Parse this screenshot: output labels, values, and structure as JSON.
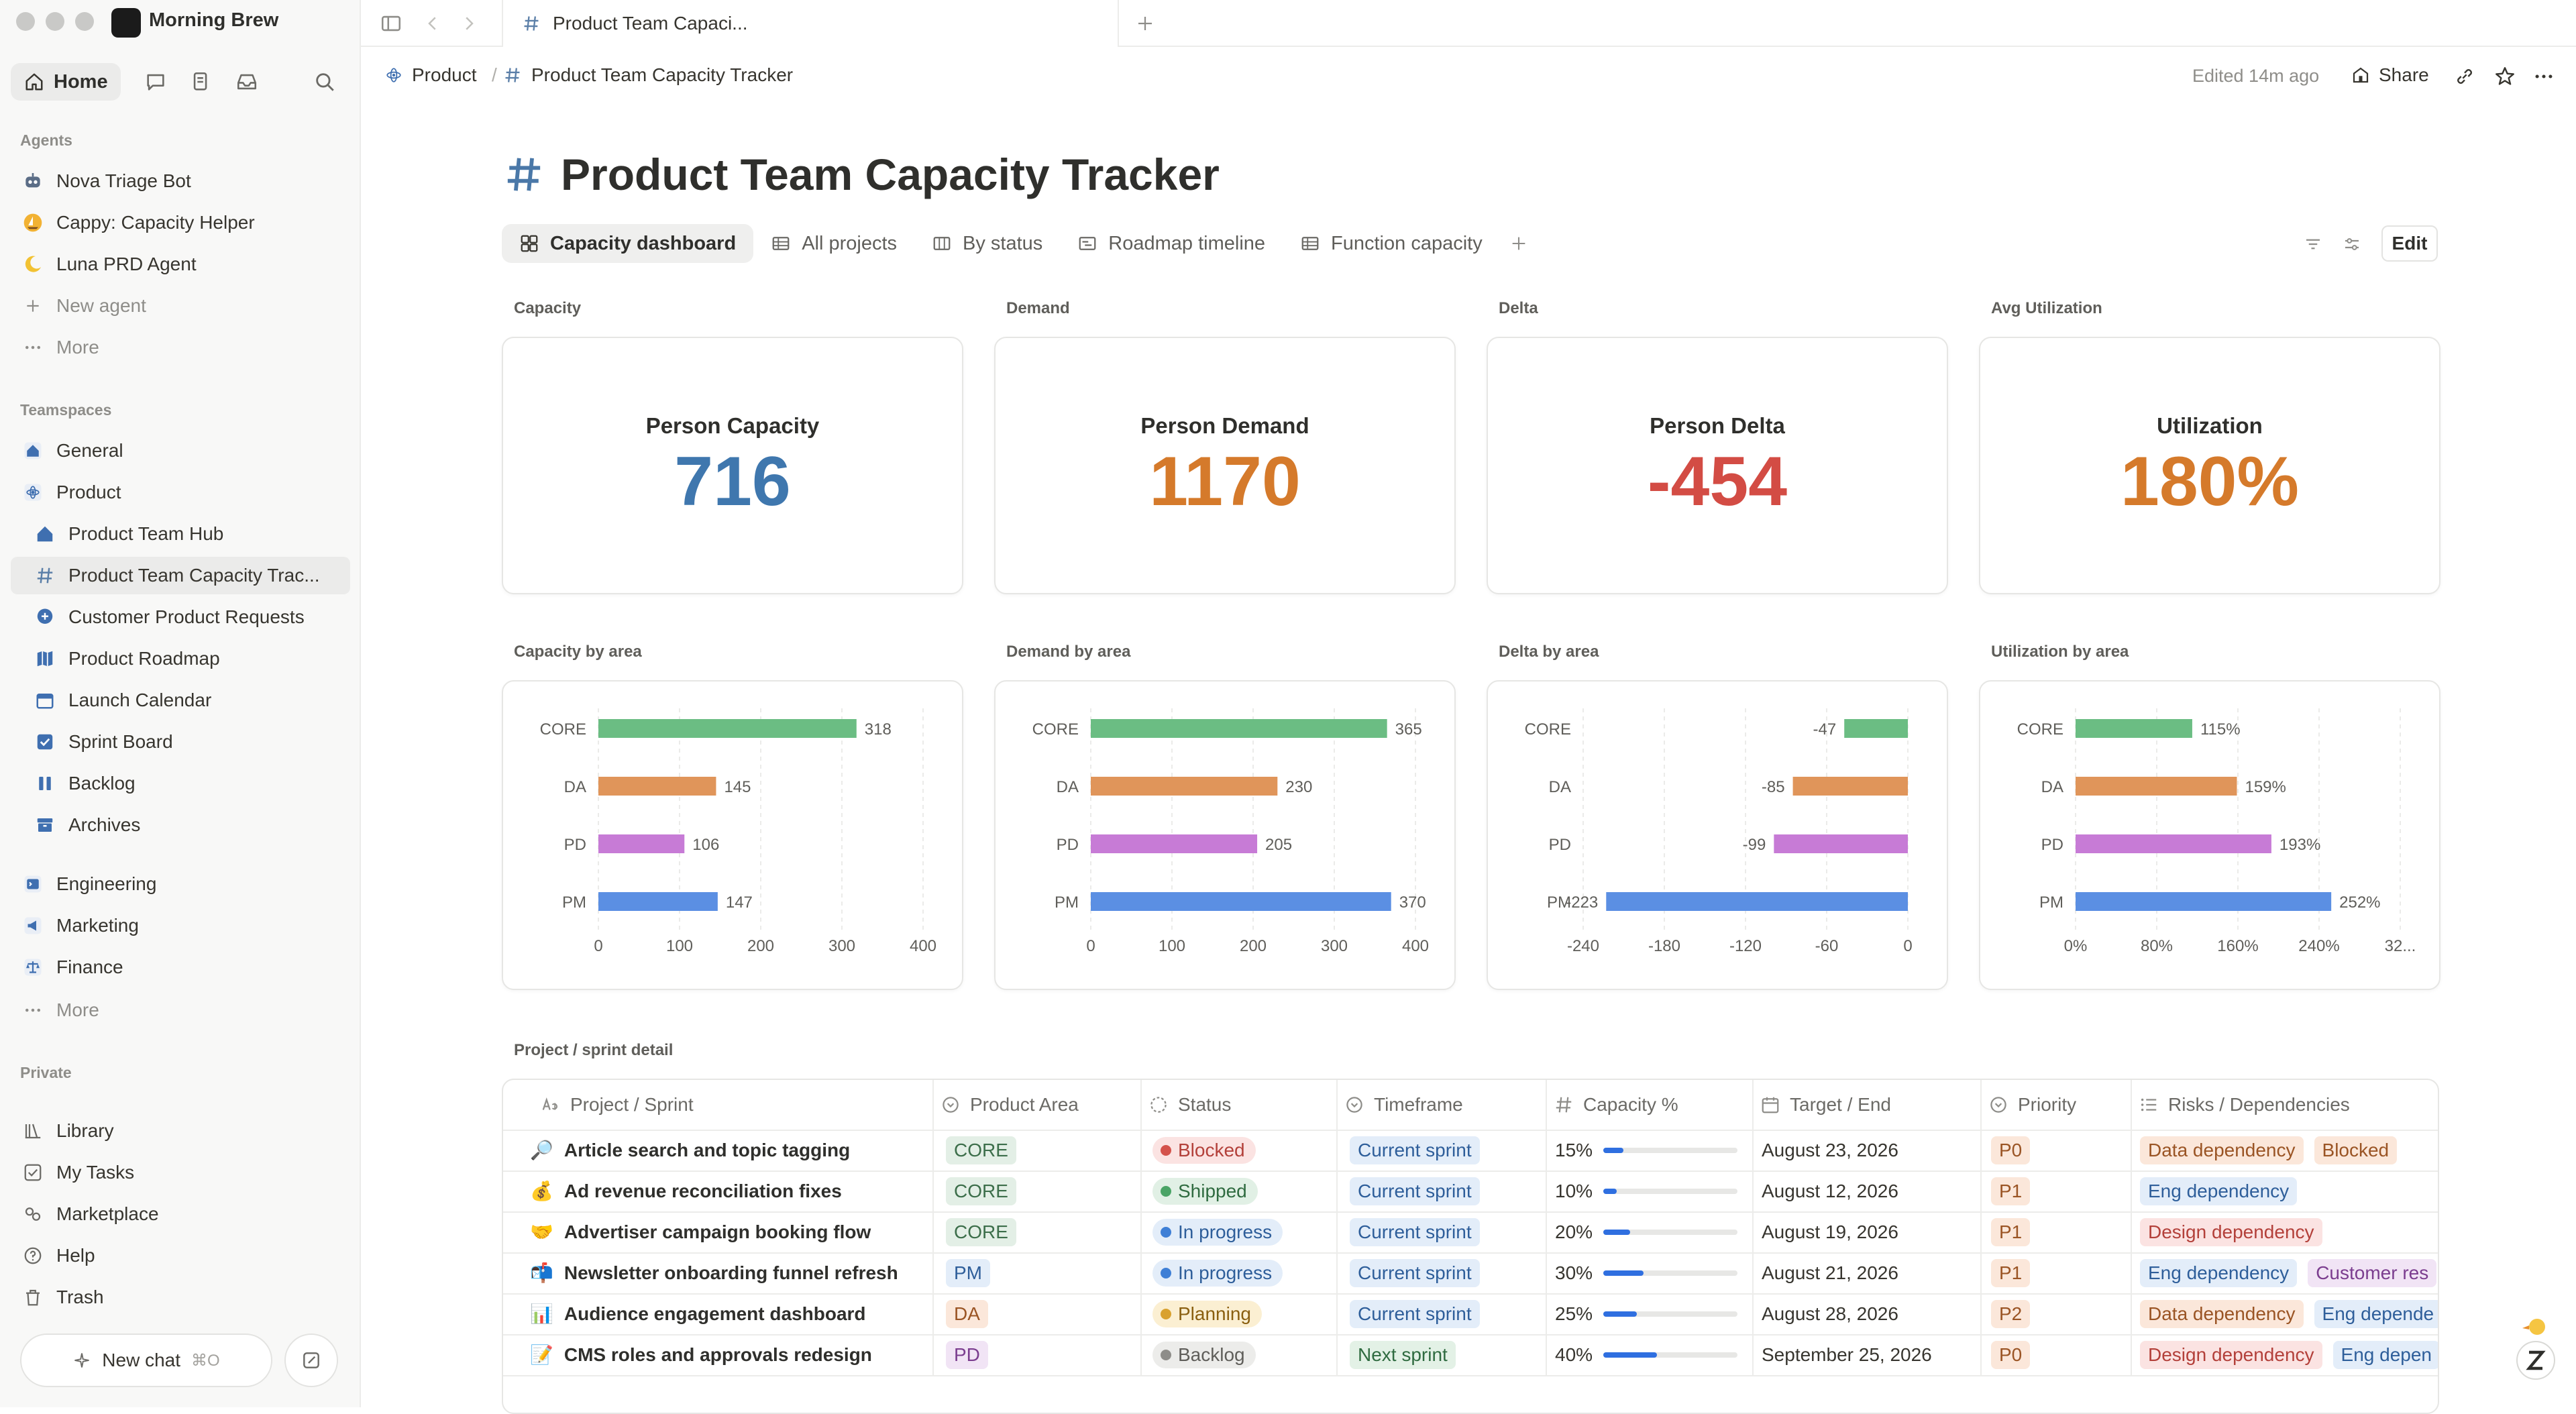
{
  "workspace": {
    "name": "Morning Brew"
  },
  "sidebar": {
    "home": "Home",
    "agents_header": "Agents",
    "agents": [
      {
        "label": "Nova Triage Bot",
        "icon": "robot-icon"
      },
      {
        "label": "Cappy: Capacity Helper",
        "icon": "sailboat-icon"
      },
      {
        "label": "Luna PRD Agent",
        "icon": "moon-icon"
      },
      {
        "label": "New agent",
        "icon": "plus-icon"
      },
      {
        "label": "More",
        "icon": "ellipsis-icon"
      }
    ],
    "teamspaces_header": "Teamspaces",
    "teamspaces": [
      {
        "label": "General"
      },
      {
        "label": "Product"
      },
      {
        "label": "Product Team Hub"
      },
      {
        "label": "Product Team Capacity Trac..."
      },
      {
        "label": "Customer Product Requests"
      },
      {
        "label": "Product Roadmap"
      },
      {
        "label": "Launch Calendar"
      },
      {
        "label": "Sprint Board"
      },
      {
        "label": "Backlog"
      },
      {
        "label": "Archives"
      },
      {
        "label": "Engineering"
      },
      {
        "label": "Marketing"
      },
      {
        "label": "Finance"
      },
      {
        "label": "More"
      }
    ],
    "private_header": "Private",
    "private": [
      {
        "label": "Library"
      },
      {
        "label": "My Tasks"
      },
      {
        "label": "Marketplace"
      },
      {
        "label": "Help"
      },
      {
        "label": "Trash"
      }
    ],
    "new_chat": "New chat",
    "new_chat_shortcut": "⌘O"
  },
  "tab": {
    "title": "Product Team Capaci..."
  },
  "breadcrumb": {
    "parent": "Product",
    "current": "Product Team Capacity Tracker"
  },
  "topbar": {
    "edited": "Edited 14m ago",
    "share": "Share"
  },
  "page": {
    "title": "Product Team Capacity Tracker"
  },
  "views": [
    "Capacity dashboard",
    "All projects",
    "By status",
    "Roadmap timeline",
    "Function capacity"
  ],
  "edit_label": "Edit",
  "kpis": [
    {
      "section": "Capacity",
      "title": "Person Capacity",
      "value": "716",
      "color": "#3f77ae"
    },
    {
      "section": "Demand",
      "title": "Person Demand",
      "value": "1170",
      "color": "#d57a2b"
    },
    {
      "section": "Delta",
      "title": "Person Delta",
      "value": "-454",
      "color": "#d34c44"
    },
    {
      "section": "Avg Utilization",
      "title": "Utilization",
      "value": "180%",
      "color": "#d57a2b"
    }
  ],
  "chart_data": [
    {
      "type": "bar",
      "orientation": "horizontal",
      "title": "Capacity by area",
      "categories": [
        "CORE",
        "DA",
        "PD",
        "PM"
      ],
      "values": [
        318,
        145,
        106,
        147
      ],
      "value_labels": [
        "318",
        "145",
        "106",
        "147"
      ],
      "xlim": [
        0,
        400
      ],
      "ticks": [
        "0",
        "100",
        "200",
        "300",
        "400"
      ]
    },
    {
      "type": "bar",
      "orientation": "horizontal",
      "title": "Demand by area",
      "categories": [
        "CORE",
        "DA",
        "PD",
        "PM"
      ],
      "values": [
        365,
        230,
        205,
        370
      ],
      "value_labels": [
        "365",
        "230",
        "205",
        "370"
      ],
      "xlim": [
        0,
        400
      ],
      "ticks": [
        "0",
        "100",
        "200",
        "300",
        "400"
      ]
    },
    {
      "type": "bar",
      "orientation": "horizontal",
      "title": "Delta by area",
      "categories": [
        "CORE",
        "DA",
        "PD",
        "PM"
      ],
      "values": [
        -47,
        -85,
        -99,
        -223
      ],
      "value_labels": [
        "-47",
        "-85",
        "-99",
        "-223"
      ],
      "xlim": [
        -240,
        0
      ],
      "ticks": [
        "-240",
        "-180",
        "-120",
        "-60",
        "0"
      ]
    },
    {
      "type": "bar",
      "orientation": "horizontal",
      "title": "Utilization by area",
      "categories": [
        "CORE",
        "DA",
        "PD",
        "PM"
      ],
      "values": [
        115,
        159,
        193,
        252
      ],
      "value_labels": [
        "115%",
        "159%",
        "193%",
        "252%"
      ],
      "xlim": [
        0,
        320
      ],
      "ticks": [
        "0%",
        "80%",
        "160%",
        "240%",
        "32..."
      ]
    }
  ],
  "bar_colors": [
    "#6bbd83",
    "#e0955a",
    "#c77bd6",
    "#5b8fe3"
  ],
  "table": {
    "section": "Project / sprint detail",
    "columns": [
      "Project / Sprint",
      "Product Area",
      "Status",
      "Timeframe",
      "Capacity %",
      "Target / End",
      "Priority",
      "Risks / Dependencies"
    ],
    "rows": [
      {
        "icon": "🔎",
        "name": "Article search and topic tagging",
        "area": "CORE",
        "status": "Blocked",
        "timeframe": "Current sprint",
        "capacity": "15%",
        "capacity_frac": 0.15,
        "target": "August 23, 2026",
        "priority": "P0",
        "risks": [
          "Data dependency",
          "Blocked"
        ]
      },
      {
        "icon": "💰",
        "name": "Ad revenue reconciliation fixes",
        "area": "CORE",
        "status": "Shipped",
        "timeframe": "Current sprint",
        "capacity": "10%",
        "capacity_frac": 0.1,
        "target": "August 12, 2026",
        "priority": "P1",
        "risks": [
          "Eng dependency"
        ]
      },
      {
        "icon": "🤝",
        "name": "Advertiser campaign booking flow",
        "area": "CORE",
        "status": "In progress",
        "timeframe": "Current sprint",
        "capacity": "20%",
        "capacity_frac": 0.2,
        "target": "August 19, 2026",
        "priority": "P1",
        "risks": [
          "Design dependency"
        ]
      },
      {
        "icon": "📬",
        "name": "Newsletter onboarding funnel refresh",
        "area": "PM",
        "status": "In progress",
        "timeframe": "Current sprint",
        "capacity": "30%",
        "capacity_frac": 0.3,
        "target": "August 21, 2026",
        "priority": "P1",
        "risks": [
          "Eng dependency",
          "Customer res"
        ]
      },
      {
        "icon": "📊",
        "name": "Audience engagement dashboard",
        "area": "DA",
        "status": "Planning",
        "timeframe": "Current sprint",
        "capacity": "25%",
        "capacity_frac": 0.25,
        "target": "August 28, 2026",
        "priority": "P2",
        "risks": [
          "Data dependency",
          "Eng depende"
        ]
      },
      {
        "icon": "📝",
        "name": "CMS roles and approvals redesign",
        "area": "PD",
        "status": "Backlog",
        "timeframe": "Next sprint",
        "capacity": "40%",
        "capacity_frac": 0.4,
        "target": "September 25, 2026",
        "priority": "P0",
        "risks": [
          "Design dependency",
          "Eng depen"
        ]
      }
    ]
  }
}
